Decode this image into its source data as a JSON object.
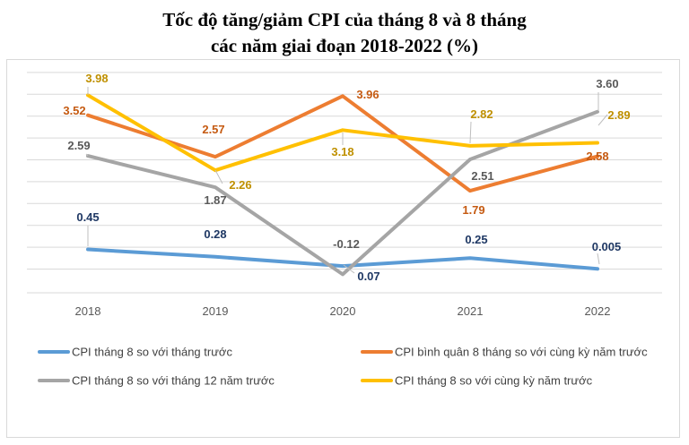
{
  "chart_data": {
    "type": "line",
    "title_line1": "Tốc độ tăng/giảm CPI của tháng 8 và 8 tháng",
    "title_line2": "các năm giai đoạn 2018-2022 (%)",
    "categories": [
      "2018",
      "2019",
      "2020",
      "2021",
      "2022"
    ],
    "xlabel": "",
    "ylabel": "",
    "ylim": [
      -0.2,
      4.2
    ],
    "grid": true,
    "legend_position": "bottom",
    "series": [
      {
        "name": "CPI tháng 8 so với tháng trước",
        "color": "#5b9bd5",
        "values": [
          0.45,
          0.28,
          0.07,
          0.25,
          0.005
        ],
        "labels": [
          "0.45",
          "0.28",
          "0.07",
          "0.25",
          "0.005"
        ]
      },
      {
        "name": "CPI bình quân 8 tháng so với cùng kỳ năm trước",
        "color": "#ed7d31",
        "values": [
          3.52,
          2.57,
          3.96,
          1.79,
          2.58
        ],
        "labels": [
          "3.52",
          "2.57",
          "3.96",
          "1.79",
          "2.58"
        ]
      },
      {
        "name": "CPI tháng 8 so với tháng 12 năm trước",
        "color": "#a5a5a5",
        "values": [
          2.59,
          1.87,
          -0.12,
          2.51,
          3.6
        ],
        "labels": [
          "2.59",
          "1.87",
          "-0.12",
          "2.51",
          "3.60"
        ]
      },
      {
        "name": "CPI tháng 8 so với cùng kỳ năm trước",
        "color": "#ffc000",
        "values": [
          3.98,
          2.26,
          3.18,
          2.82,
          2.89
        ],
        "labels": [
          "3.98",
          "2.26",
          "3.18",
          "2.82",
          "2.89"
        ]
      }
    ]
  }
}
